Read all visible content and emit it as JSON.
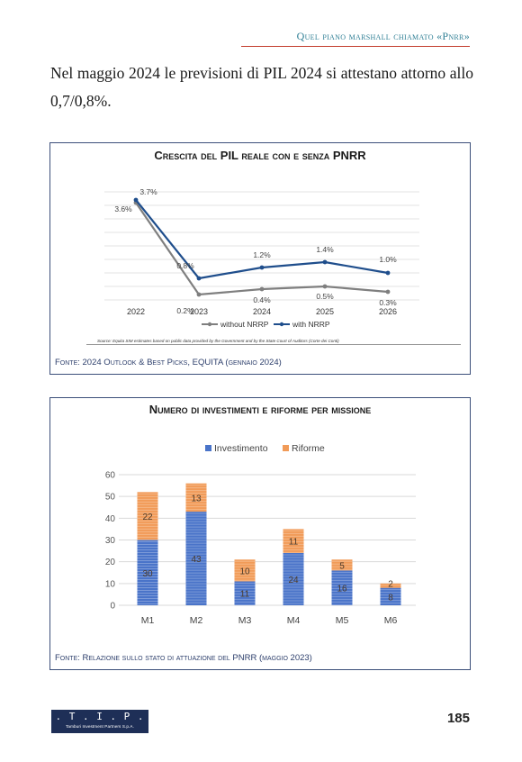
{
  "header": {
    "running_title": "Quel piano marshall chiamato «Pnrr»"
  },
  "body": {
    "paragraph": "Nel maggio 2024 le previsioni di PIL 2024  si attestano attorno allo 0,7/0,8%."
  },
  "figure1": {
    "source_note": "Source: Equita SIM estimates based on public data provided by the Government and by the State Court of Auditors (Corte dei Conti)",
    "caption": "Fonte: 2024 Outlook & Best Picks, EQUITA (gennaio 2024)"
  },
  "figure2": {
    "caption": "Fonte: Relazione sullo stato di attuazione del PNRR (maggio 2023)"
  },
  "chart_data": [
    {
      "type": "line",
      "title": "Crescita del PIL reale con e senza PNRR",
      "x": [
        "2022",
        "2023",
        "2024",
        "2025",
        "2026"
      ],
      "series": [
        {
          "name": "without NRRP",
          "values": [
            3.6,
            0.2,
            0.4,
            0.5,
            0.3
          ],
          "labels": [
            "3.6%",
            "0.2%",
            "0.4%",
            "0.5%",
            "0.3%"
          ],
          "color": "#7f7f7f"
        },
        {
          "name": "with NRRP",
          "values": [
            3.7,
            0.8,
            1.2,
            1.4,
            1.0
          ],
          "labels": [
            "3.7%",
            "0.8%",
            "1.2%",
            "1.4%",
            "1.0%"
          ],
          "color": "#1f4e8c"
        }
      ],
      "ylim": [
        0,
        4
      ],
      "grid": true,
      "legend": "bottom"
    },
    {
      "type": "bar",
      "stacked": true,
      "title": "Numero di investimenti e riforme per missione",
      "categories": [
        "M1",
        "M2",
        "M3",
        "M4",
        "M5",
        "M6"
      ],
      "series": [
        {
          "name": "Investimento",
          "values": [
            30,
            43,
            11,
            24,
            16,
            8
          ],
          "color": "#4a74c9"
        },
        {
          "name": "Riforme",
          "values": [
            22,
            13,
            10,
            11,
            5,
            2
          ],
          "color": "#f19b58"
        }
      ],
      "yticks": [
        "0",
        "10",
        "20",
        "30",
        "40",
        "50",
        "60"
      ],
      "ylim": [
        0,
        60
      ],
      "grid": true,
      "legend": "top"
    }
  ],
  "footer": {
    "logo_text": ". T . I . P .",
    "logo_subtext": "Tamburi Investment Partners S.p.A.",
    "page_number": "185"
  }
}
